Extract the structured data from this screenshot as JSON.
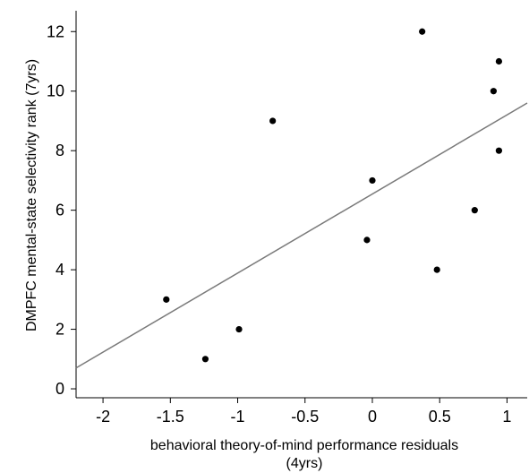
{
  "chart_data": {
    "type": "scatter",
    "xlabel_lines": [
      "behavioral theory-of-mind performance residuals",
      "(4yrs)"
    ],
    "ylabel": "DMPFC mental-state selectivity rank (7yrs)",
    "xlim": [
      -2.2,
      1.15
    ],
    "ylim": [
      -0.3,
      12.7
    ],
    "x_ticks": [
      -2,
      -1.5,
      -1,
      -0.5,
      0,
      0.5,
      1
    ],
    "x_tick_labels": [
      "-2",
      "-1.5",
      "-1",
      "-0.5",
      "0",
      "0.5",
      "1"
    ],
    "y_ticks": [
      0,
      2,
      4,
      6,
      8,
      10,
      12
    ],
    "y_tick_labels": [
      "0",
      "2",
      "4",
      "6",
      "8",
      "10",
      "12"
    ],
    "points": [
      {
        "x": -1.53,
        "y": 3
      },
      {
        "x": -1.24,
        "y": 1
      },
      {
        "x": -0.99,
        "y": 2
      },
      {
        "x": -0.74,
        "y": 9
      },
      {
        "x": -0.04,
        "y": 5
      },
      {
        "x": 0.0,
        "y": 7
      },
      {
        "x": 0.37,
        "y": 12
      },
      {
        "x": 0.48,
        "y": 4
      },
      {
        "x": 0.76,
        "y": 6
      },
      {
        "x": 0.9,
        "y": 10
      },
      {
        "x": 0.94,
        "y": 11
      },
      {
        "x": 0.94,
        "y": 8
      }
    ],
    "fit_line": {
      "x": [
        -2.2,
        1.15
      ],
      "y": [
        0.7,
        9.6
      ]
    },
    "grid": false,
    "colors": {
      "points": "#000000",
      "fit_line": "#7a7a7a",
      "axes": "#000000"
    }
  }
}
